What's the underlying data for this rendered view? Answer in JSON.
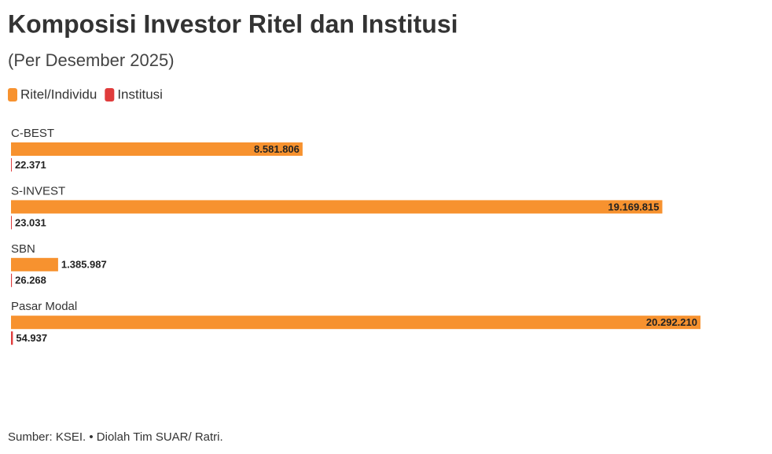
{
  "chart_data": {
    "type": "grouped-hbar",
    "title": "Komposisi Investor Ritel dan Institusi",
    "subtitle": "(Per Desember 2025)",
    "source": "Sumber: KSEI. • Diolah Tim SUAR/ Ratri.",
    "categories": [
      "C-BEST",
      "S-INVEST",
      "SBN",
      "Pasar Modal"
    ],
    "series": [
      {
        "name": "Ritel/Individu",
        "color": "#f7922f",
        "values": [
          8581806,
          19169815,
          1385987,
          20292210
        ],
        "value_labels": [
          "8.581.806",
          "19.169.815",
          "1.385.987",
          "20.292.210"
        ]
      },
      {
        "name": "Institusi",
        "color": "#e03c3c",
        "values": [
          22371,
          23031,
          26268,
          54937
        ],
        "value_labels": [
          "22.371",
          "23.031",
          "26.268",
          "54.937"
        ]
      }
    ]
  }
}
